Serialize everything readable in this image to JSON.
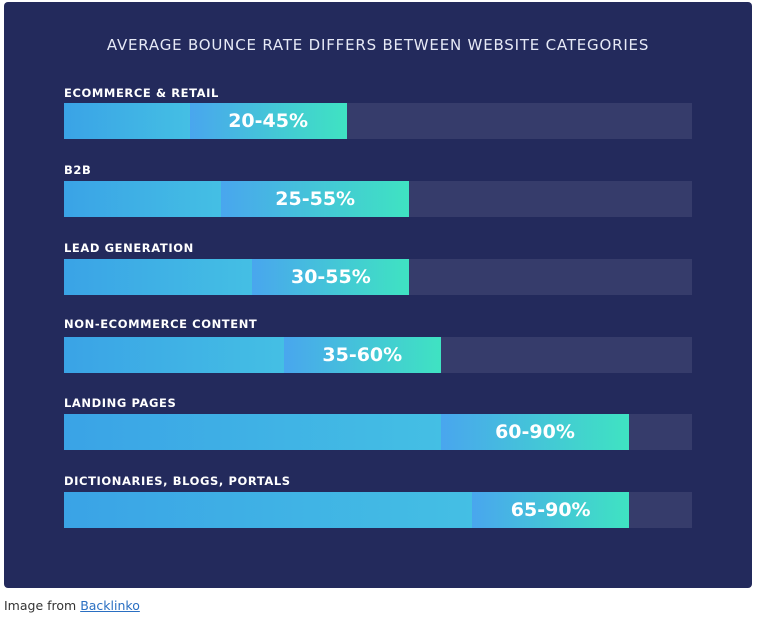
{
  "chart_data": {
    "type": "bar",
    "title": "AVERAGE BOUNCE RATE DIFFERS BETWEEN WEBSITE CATEGORIES",
    "xlim": [
      0,
      100
    ],
    "categories": [
      "ECOMMERCE & RETAIL",
      "B2B",
      "LEAD GENERATION",
      "NON-ECOMMERCE CONTENT",
      "LANDING PAGES",
      "DICTIONARIES, BLOGS, PORTALS"
    ],
    "ranges": [
      {
        "low": 20,
        "high": 45,
        "label": "20-45%"
      },
      {
        "low": 25,
        "high": 55,
        "label": "25-55%"
      },
      {
        "low": 30,
        "high": 55,
        "label": "30-55%"
      },
      {
        "low": 35,
        "high": 60,
        "label": "35-60%"
      },
      {
        "low": 60,
        "high": 90,
        "label": "60-90%"
      },
      {
        "low": 65,
        "high": 90,
        "label": "65-90%"
      }
    ],
    "colors": {
      "background": "#232a5c",
      "track": "#363c6b",
      "bar_start": "#3aa3e6",
      "bar_end": "#3fe3c2"
    }
  },
  "caption": {
    "prefix": "Image from ",
    "link_text": "Backlinko"
  }
}
